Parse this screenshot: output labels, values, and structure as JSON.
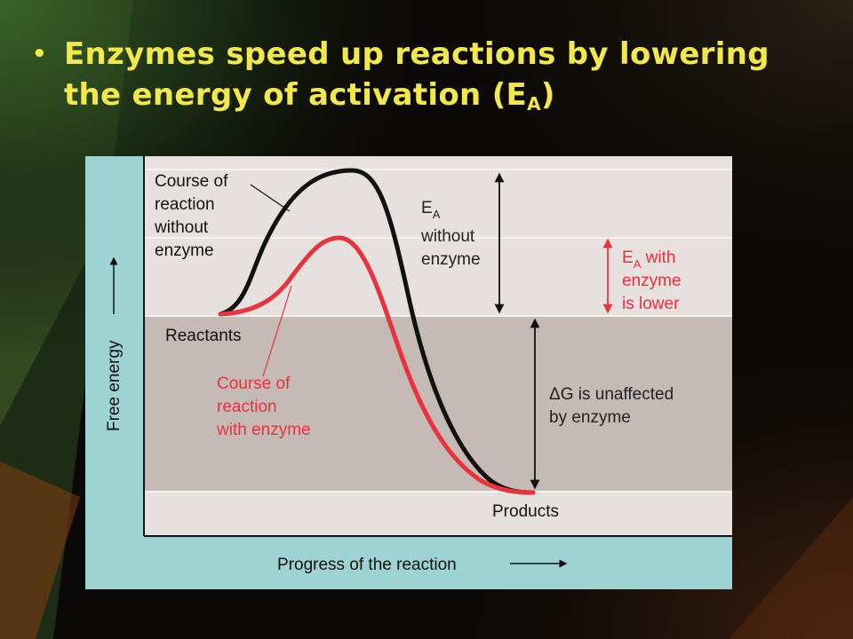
{
  "slide": {
    "bullet": "•",
    "title_main": "Enzymes speed up reactions by lowering the energy of activation (E",
    "title_sub": "A",
    "title_end": ")"
  },
  "figure": {
    "y_axis_label": "Free energy",
    "x_axis_label": "Progress of the reaction",
    "reactants_label": "Reactants",
    "products_label": "Products",
    "without_enzyme_label": [
      "Course of",
      "reaction",
      "without",
      "enzyme"
    ],
    "with_enzyme_label": [
      "Course of",
      "reaction",
      "with enzyme"
    ],
    "ea_without_label": {
      "symbol": "E",
      "sub": "A",
      "lines": [
        "without",
        "enzyme"
      ]
    },
    "ea_with_label": {
      "symbol": "E",
      "sub": "A",
      "first_line_rest": " with",
      "lines": [
        "enzyme",
        "is lower"
      ]
    },
    "dg_label": [
      "ΔG is unaffected",
      "by enzyme"
    ],
    "colors": {
      "without_enzyme": "#111111",
      "with_enzyme": "#e8323c",
      "panel_bg": "#9ed3d4",
      "plot_bg": "#e6e1df",
      "energy_band": "#c6bab7"
    }
  }
}
